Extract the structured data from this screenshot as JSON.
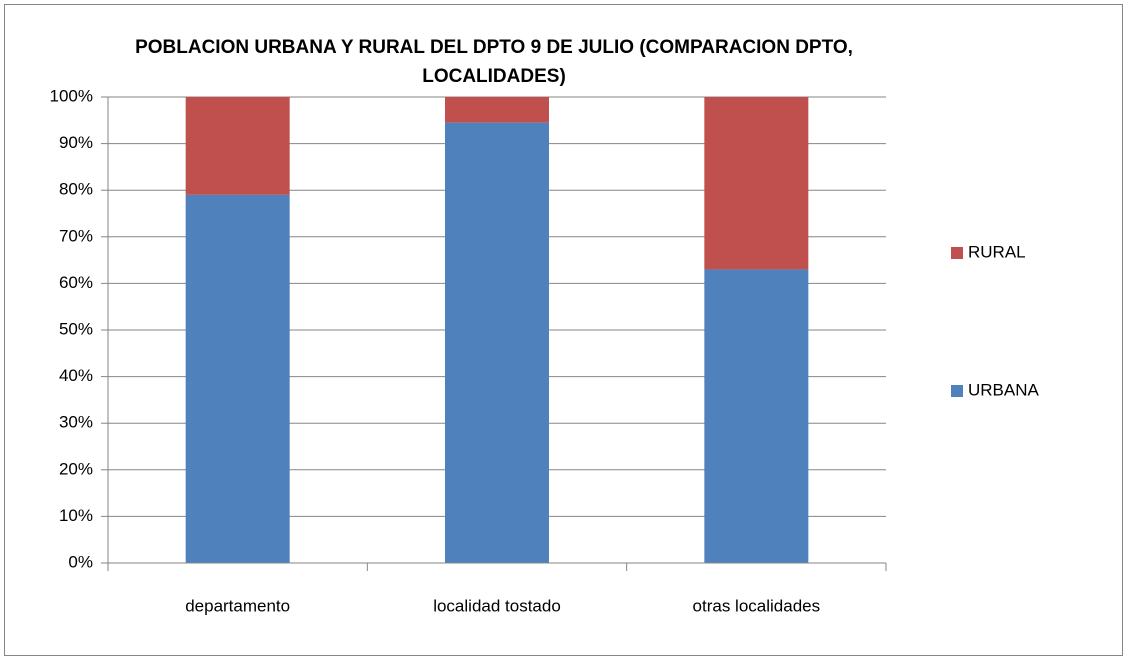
{
  "chart_data": {
    "type": "bar",
    "stacked": true,
    "title": "POBLACION URBANA Y RURAL DEL DPTO 9 DE JULIO (COMPARACION DPTO, LOCALIDADES)",
    "categories": [
      "departamento",
      "localidad tostado",
      "otras localidades"
    ],
    "series": [
      {
        "name": "URBANA",
        "color": "#4f81bd",
        "values": [
          79,
          94.5,
          63
        ]
      },
      {
        "name": "RURAL",
        "color": "#c0504d",
        "values": [
          21,
          5.5,
          37
        ]
      }
    ],
    "ylim": [
      0,
      100
    ],
    "yticks": [
      {
        "value": 0,
        "label": "0%"
      },
      {
        "value": 10,
        "label": "10%"
      },
      {
        "value": 20,
        "label": "20%"
      },
      {
        "value": 30,
        "label": "30%"
      },
      {
        "value": 40,
        "label": "40%"
      },
      {
        "value": 50,
        "label": "50%"
      },
      {
        "value": 60,
        "label": "60%"
      },
      {
        "value": 70,
        "label": "70%"
      },
      {
        "value": 80,
        "label": "80%"
      },
      {
        "value": 90,
        "label": "90%"
      },
      {
        "value": 100,
        "label": "100%"
      }
    ],
    "grid": true,
    "legend": "right"
  }
}
